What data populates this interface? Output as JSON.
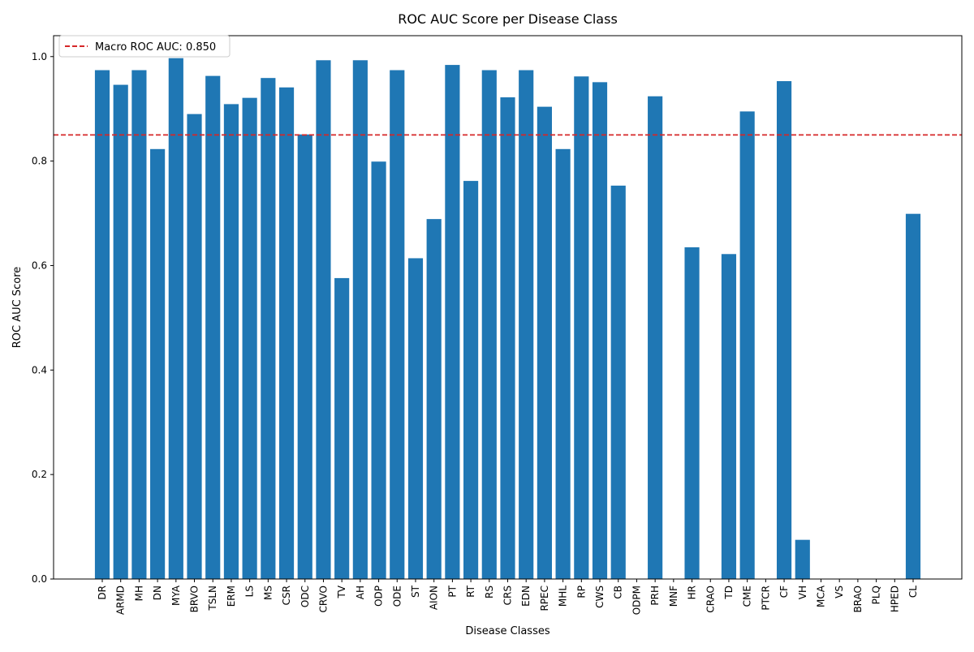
{
  "chart_data": {
    "type": "bar",
    "title": "ROC AUC Score per Disease Class",
    "xlabel": "Disease Classes",
    "ylabel": "ROC AUC Score",
    "ylim": [
      0,
      1.04
    ],
    "yticks": [
      0.0,
      0.2,
      0.4,
      0.6,
      0.8,
      1.0
    ],
    "ytick_labels": [
      "0.0",
      "0.2",
      "0.4",
      "0.6",
      "0.8",
      "1.0"
    ],
    "categories": [
      "DR",
      "ARMD",
      "MH",
      "DN",
      "MYA",
      "BRVO",
      "TSLN",
      "ERM",
      "LS",
      "MS",
      "CSR",
      "ODC",
      "CRVO",
      "TV",
      "AH",
      "ODP",
      "ODE",
      "ST",
      "AION",
      "PT",
      "RT",
      "RS",
      "CRS",
      "EDN",
      "RPEC",
      "MHL",
      "RP",
      "CWS",
      "CB",
      "ODPM",
      "PRH",
      "MNF",
      "HR",
      "CRAO",
      "TD",
      "CME",
      "PTCR",
      "CF",
      "VH",
      "MCA",
      "VS",
      "BRAO",
      "PLQ",
      "HPED",
      "CL"
    ],
    "values": [
      0.974,
      0.946,
      0.974,
      0.823,
      0.997,
      0.89,
      0.963,
      0.909,
      0.921,
      0.959,
      0.941,
      0.851,
      0.993,
      0.576,
      0.993,
      0.799,
      0.974,
      0.614,
      0.689,
      0.984,
      0.762,
      0.974,
      0.922,
      0.974,
      0.904,
      0.823,
      0.962,
      0.951,
      0.753,
      0.0,
      0.924,
      0.0,
      0.635,
      0.0,
      0.622,
      0.895,
      0.0,
      0.953,
      0.075,
      0.0,
      0.0,
      0.0,
      0.0,
      0.0,
      0.699
    ],
    "bar_color": "#1f77b4",
    "reference_line": {
      "value": 0.85,
      "color": "#d62728",
      "style": "dashed"
    },
    "legend": {
      "position": "top-left",
      "label": "Macro ROC AUC: 0.850"
    },
    "grid": false
  }
}
